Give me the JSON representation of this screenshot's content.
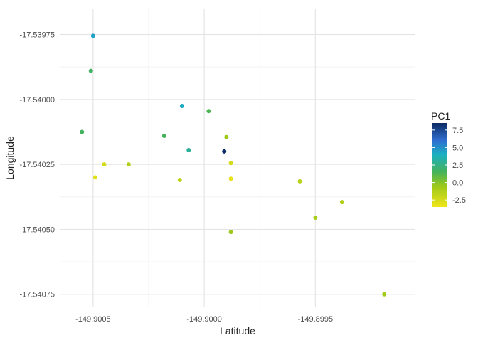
{
  "chart_data": {
    "type": "scatter",
    "title": "",
    "xlabel": "Latitude",
    "ylabel": "Longitude",
    "xlim": [
      -149.90065,
      -149.89905
    ],
    "ylim": [
      -17.5408,
      -17.53965
    ],
    "x_ticks": [
      {
        "value": -149.9005,
        "label": "-149.9005"
      },
      {
        "value": -149.9,
        "label": "-149.9000"
      },
      {
        "value": -149.8995,
        "label": "-149.8995"
      }
    ],
    "y_ticks": [
      {
        "value": -17.53975,
        "label": "-17.53975"
      },
      {
        "value": -17.54,
        "label": "-17.54000"
      },
      {
        "value": -17.54025,
        "label": "-17.54025"
      },
      {
        "value": -17.5405,
        "label": "-17.54050"
      },
      {
        "value": -17.54075,
        "label": "-17.54075"
      }
    ],
    "grid": true,
    "legend": {
      "title": "PC1",
      "placement": "right",
      "type": "colorbar",
      "range": [
        -3.5,
        8.5
      ],
      "ticks": [
        {
          "value": 7.5,
          "label": "7.5"
        },
        {
          "value": 5.0,
          "label": "5.0"
        },
        {
          "value": 2.5,
          "label": "2.5"
        },
        {
          "value": 0.0,
          "label": "0.0"
        },
        {
          "value": -2.5,
          "label": "-2.5"
        }
      ]
    },
    "colorscale": [
      {
        "value": -3.5,
        "color": "#f0e51a"
      },
      {
        "value": -0.5,
        "color": "#9cc81a"
      },
      {
        "value": 1.5,
        "color": "#45b25a"
      },
      {
        "value": 4.0,
        "color": "#1bb0c2"
      },
      {
        "value": 6.0,
        "color": "#2f6fd0"
      },
      {
        "value": 8.5,
        "color": "#0c2a63"
      }
    ],
    "points": [
      {
        "x": -149.9005,
        "y": -17.539755,
        "pc1": 4.5
      },
      {
        "x": -149.90051,
        "y": -17.53989,
        "pc1": 1.8
      },
      {
        "x": -149.9001,
        "y": -17.540025,
        "pc1": 4.2
      },
      {
        "x": -149.89998,
        "y": -17.540045,
        "pc1": 1.3
      },
      {
        "x": -149.90055,
        "y": -17.540125,
        "pc1": 1.6
      },
      {
        "x": -149.90018,
        "y": -17.54014,
        "pc1": 1.5
      },
      {
        "x": -149.8999,
        "y": -17.540145,
        "pc1": -0.5
      },
      {
        "x": -149.90007,
        "y": -17.540195,
        "pc1": 3.0
      },
      {
        "x": -149.89991,
        "y": -17.5402,
        "pc1": 8.5
      },
      {
        "x": -149.90045,
        "y": -17.54025,
        "pc1": -2.5
      },
      {
        "x": -149.90034,
        "y": -17.54025,
        "pc1": -1.2
      },
      {
        "x": -149.89988,
        "y": -17.540245,
        "pc1": -2.5
      },
      {
        "x": -149.90049,
        "y": -17.5403,
        "pc1": -3.0
      },
      {
        "x": -149.90011,
        "y": -17.54031,
        "pc1": -1.8
      },
      {
        "x": -149.89988,
        "y": -17.540305,
        "pc1": -3.2
      },
      {
        "x": -149.89957,
        "y": -17.540315,
        "pc1": -1.5
      },
      {
        "x": -149.89938,
        "y": -17.540395,
        "pc1": -1.2
      },
      {
        "x": -149.8995,
        "y": -17.540455,
        "pc1": -1.0
      },
      {
        "x": -149.89988,
        "y": -17.54051,
        "pc1": -0.5
      },
      {
        "x": -149.89919,
        "y": -17.54075,
        "pc1": -0.8
      }
    ]
  }
}
